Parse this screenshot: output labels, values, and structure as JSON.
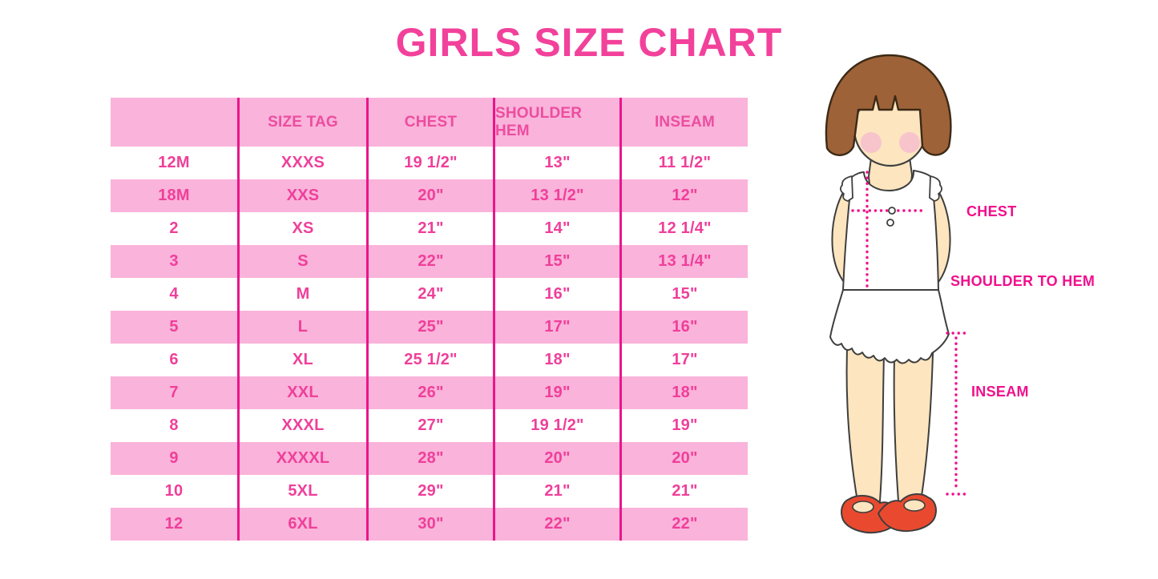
{
  "title": "GIRLS SIZE CHART",
  "chart_data": {
    "type": "table",
    "title": "GIRLS SIZE CHART",
    "columns": [
      "",
      "SIZE TAG",
      "CHEST",
      "SHOULDER HEM",
      "INSEAM"
    ],
    "rows": [
      [
        "12M",
        "XXXS",
        "19 1/2\"",
        "13\"",
        "11 1/2\""
      ],
      [
        "18M",
        "XXS",
        "20\"",
        "13 1/2\"",
        "12\""
      ],
      [
        "2",
        "XS",
        "21\"",
        "14\"",
        "12 1/4\""
      ],
      [
        "3",
        "S",
        "22\"",
        "15\"",
        "13 1/4\""
      ],
      [
        "4",
        "M",
        "24\"",
        "16\"",
        "15\""
      ],
      [
        "5",
        "L",
        "25\"",
        "17\"",
        "16\""
      ],
      [
        "6",
        "XL",
        "25 1/2\"",
        "18\"",
        "17\""
      ],
      [
        "7",
        "XXL",
        "26\"",
        "19\"",
        "18\""
      ],
      [
        "8",
        "XXXL",
        "27\"",
        "19 1/2\"",
        "19\""
      ],
      [
        "9",
        "XXXXL",
        "28\"",
        "20\"",
        "20\""
      ],
      [
        "10",
        "5XL",
        "29\"",
        "21\"",
        "21\""
      ],
      [
        "12",
        "6XL",
        "30\"",
        "22\"",
        "22\""
      ]
    ],
    "layout": {
      "striped_rows": true,
      "stripe_color": "#FAB3DA",
      "grid_lines": "vertical-only"
    }
  },
  "figure": {
    "labels": {
      "chest": "CHEST",
      "shoulder_to_hem": "SHOULDER TO HEM",
      "inseam": "INSEAM"
    }
  },
  "colors": {
    "title_pink": "#F2419B",
    "table_text_pink": "#EF3F9A",
    "label_magenta": "#F0108C",
    "row_stripe_pink": "#FAB3DA",
    "grid_line_magenta": "#E9168A",
    "hair_brown": "#9E6238",
    "skin": "#FCE5BF",
    "blush_pink": "#F6B8D0",
    "shoe_red": "#E94A2F",
    "outline": "#3E3E3E"
  }
}
